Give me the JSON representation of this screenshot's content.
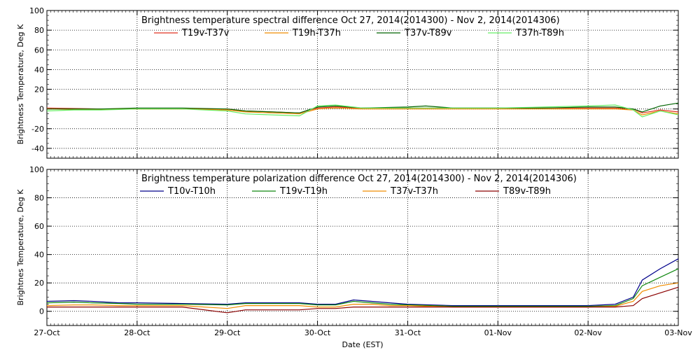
{
  "chart_data": [
    {
      "type": "line",
      "title": "Brightness temperature spectral difference     Oct 27, 2014(2014300) - Nov  2, 2014(2014306)",
      "ylabel": "Brightness Temperature, Deg K",
      "xlabel": "",
      "xlim": [
        0,
        7
      ],
      "ylim": [
        -50,
        100
      ],
      "yticks": [
        -40,
        -20,
        0,
        20,
        40,
        60,
        80,
        100
      ],
      "x_ticks": [
        {
          "x": 0,
          "label": "27-Oct"
        },
        {
          "x": 1,
          "label": "28-Oct"
        },
        {
          "x": 2,
          "label": "29-Oct"
        },
        {
          "x": 3,
          "label": "30-Oct"
        },
        {
          "x": 4,
          "label": "31-Oct"
        },
        {
          "x": 5,
          "label": "01-Nov"
        },
        {
          "x": 6,
          "label": "02-Nov"
        },
        {
          "x": 7,
          "label": "03-Nov"
        }
      ],
      "show_xtick_labels": false,
      "grid": true,
      "legend_position": "top",
      "series": [
        {
          "name": "T19v-T37v",
          "color": "#e03020",
          "x": [
            0,
            0.3,
            0.6,
            1,
            1.5,
            2,
            2.2,
            2.5,
            2.8,
            3,
            3.2,
            3.5,
            4,
            4.5,
            5,
            5.5,
            6,
            6.3,
            6.5,
            6.6,
            6.8,
            7
          ],
          "y": [
            1,
            0.5,
            0,
            0,
            0,
            0,
            -2,
            -3,
            -4,
            1,
            2,
            1,
            1,
            1,
            1,
            1,
            1,
            1,
            0,
            -4,
            -1,
            -3
          ]
        },
        {
          "name": "T19h-T37h",
          "color": "#f08c00",
          "x": [
            0,
            0.3,
            0.6,
            1,
            1.5,
            2,
            2.2,
            2.5,
            2.8,
            3,
            3.2,
            3.5,
            4,
            4.5,
            5,
            5.5,
            6,
            6.3,
            6.5,
            6.6,
            6.8,
            7
          ],
          "y": [
            0,
            -0.5,
            -0.5,
            0,
            0,
            -1,
            -3,
            -4,
            -5,
            0,
            1,
            0,
            0,
            0,
            0,
            0,
            0,
            0,
            -1,
            -6,
            -2,
            -5
          ]
        },
        {
          "name": "T37v-T89v",
          "color": "#006400",
          "x": [
            0,
            0.3,
            0.6,
            1,
            1.5,
            2,
            2.2,
            2.5,
            2.8,
            3,
            3.2,
            3.5,
            4,
            4.2,
            4.5,
            5,
            5.5,
            6,
            6.3,
            6.5,
            6.6,
            6.8,
            7
          ],
          "y": [
            0,
            0,
            0,
            1,
            1,
            0,
            -2,
            -3,
            -4,
            2,
            3,
            1,
            2,
            3,
            1,
            1,
            1,
            2,
            2,
            0,
            -3,
            3,
            6
          ]
        },
        {
          "name": "T37h-T89h",
          "color": "#66ee66",
          "x": [
            0,
            0.3,
            0.6,
            1,
            1.5,
            2,
            2.2,
            2.5,
            2.8,
            3,
            3.2,
            3.5,
            4,
            4.5,
            5,
            5.5,
            6,
            6.3,
            6.5,
            6.6,
            6.8,
            7
          ],
          "y": [
            -2,
            -1,
            -1,
            0,
            0,
            -2,
            -5,
            -6,
            -7,
            3,
            4,
            1,
            1,
            1,
            1,
            2,
            3,
            4,
            -1,
            -8,
            -2,
            -6
          ]
        }
      ]
    },
    {
      "type": "line",
      "title": "Brightness temperature polarization difference     Oct 27, 2014(2014300) - Nov  2, 2014(2014306)",
      "ylabel": "Brightnes Temperature, Deg K",
      "xlabel": "Date (EST)",
      "xlim": [
        0,
        7
      ],
      "ylim": [
        -10,
        100
      ],
      "yticks": [
        0,
        20,
        40,
        60,
        80,
        100
      ],
      "x_ticks": [
        {
          "x": 0,
          "label": "27-Oct"
        },
        {
          "x": 1,
          "label": "28-Oct"
        },
        {
          "x": 2,
          "label": "29-Oct"
        },
        {
          "x": 3,
          "label": "30-Oct"
        },
        {
          "x": 4,
          "label": "31-Oct"
        },
        {
          "x": 5,
          "label": "01-Nov"
        },
        {
          "x": 6,
          "label": "02-Nov"
        },
        {
          "x": 7,
          "label": "03-Nov"
        }
      ],
      "show_xtick_labels": true,
      "grid": true,
      "legend_position": "top",
      "series": [
        {
          "name": "T10v-T10h",
          "color": "#00008b",
          "x": [
            0,
            0.3,
            0.5,
            0.8,
            1,
            1.5,
            2,
            2.2,
            2.5,
            2.8,
            3,
            3.2,
            3.4,
            3.6,
            3.8,
            4,
            4.5,
            5,
            5.5,
            6,
            6.3,
            6.5,
            6.6,
            6.8,
            7
          ],
          "y": [
            7,
            7.5,
            7,
            6,
            6,
            5.5,
            5,
            6,
            6,
            6,
            5,
            5,
            8,
            7,
            6,
            5,
            4,
            4,
            4,
            4,
            5,
            10,
            22,
            30,
            37
          ]
        },
        {
          "name": "T19v-T19h",
          "color": "#118811",
          "x": [
            0,
            0.3,
            0.5,
            0.8,
            1,
            1.5,
            2,
            2.2,
            2.5,
            2.8,
            3,
            3.2,
            3.4,
            3.6,
            3.8,
            4,
            4.5,
            5,
            5.5,
            6,
            6.3,
            6.5,
            6.6,
            6.8,
            7
          ],
          "y": [
            6,
            6.5,
            6,
            5.5,
            5,
            5,
            4.5,
            5.5,
            5.5,
            5.5,
            4.5,
            4.5,
            7,
            6,
            5,
            4.5,
            3.5,
            3.5,
            3.5,
            3.5,
            4,
            9,
            18,
            24,
            30
          ]
        },
        {
          "name": "T37v-T37h",
          "color": "#f08c00",
          "x": [
            0,
            0.3,
            0.5,
            0.8,
            1,
            1.5,
            2,
            2.2,
            2.5,
            2.8,
            3,
            3.2,
            3.4,
            3.6,
            3.8,
            4,
            4.5,
            5,
            5.5,
            6,
            6.3,
            6.5,
            6.6,
            6.8,
            7
          ],
          "y": [
            4,
            4.5,
            4.5,
            4,
            4,
            4,
            2,
            4,
            4,
            4,
            3,
            3,
            5,
            5,
            4,
            4,
            3,
            3,
            3,
            3,
            3.5,
            7,
            14,
            18,
            20
          ]
        },
        {
          "name": "T89v-T89h",
          "color": "#8b0000",
          "x": [
            0,
            0.3,
            0.5,
            0.8,
            1,
            1.5,
            2,
            2.2,
            2.5,
            2.8,
            3,
            3.2,
            3.4,
            3.6,
            3.8,
            4,
            4.5,
            5,
            5.5,
            6,
            6.3,
            6.5,
            6.6,
            6.8,
            7
          ],
          "y": [
            3,
            3,
            3,
            3,
            3,
            3,
            -1,
            1,
            1,
            1,
            2,
            2,
            3,
            3,
            3,
            3,
            3,
            3,
            3,
            3,
            3,
            4,
            9,
            13,
            17
          ]
        }
      ]
    }
  ]
}
